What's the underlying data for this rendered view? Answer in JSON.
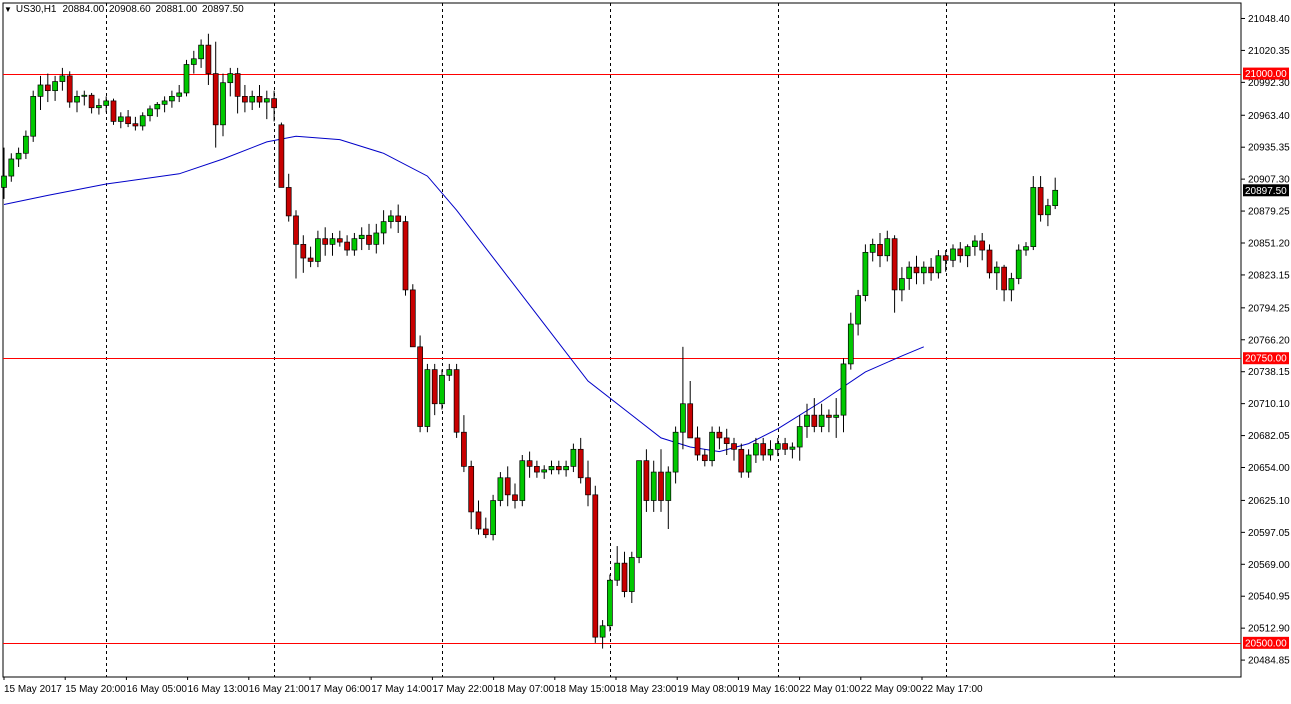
{
  "header": {
    "symbol_label": "US30,H1",
    "open": "20884.00",
    "high": "20908.60",
    "low": "20881.00",
    "close": "20897.50",
    "menu_icon": "triangle-down-icon"
  },
  "chart_data": {
    "type": "candlestick",
    "symbol": "US30",
    "timeframe": "H1",
    "ylim": [
      20470.0,
      21062.0
    ],
    "y_ticks": [
      "21048.40",
      "21020.35",
      "20992.30",
      "20963.40",
      "20935.35",
      "20907.30",
      "20879.25",
      "20851.20",
      "20823.15",
      "20794.25",
      "20766.20",
      "20738.15",
      "20710.10",
      "20682.05",
      "20654.00",
      "20625.10",
      "20597.05",
      "20569.00",
      "20540.95",
      "20512.90",
      "20484.85"
    ],
    "x_labels": [
      "15 May 2017",
      "15 May 20:00",
      "16 May 05:00",
      "16 May 13:00",
      "16 May 21:00",
      "17 May 06:00",
      "17 May 14:00",
      "17 May 22:00",
      "18 May 07:00",
      "18 May 15:00",
      "18 May 23:00",
      "19 May 08:00",
      "19 May 16:00",
      "22 May 01:00",
      "22 May 09:00",
      "22 May 17:00"
    ],
    "session_separator_indices": [
      14,
      37,
      60,
      83,
      106,
      129,
      152
    ],
    "horizontal_levels": [
      {
        "value": 21000.0,
        "label": "21000.00"
      },
      {
        "value": 20750.0,
        "label": "20750.00"
      },
      {
        "value": 20500.0,
        "label": "20500.00"
      }
    ],
    "current_price": {
      "value": 20897.5,
      "label": "20897.50"
    },
    "colors": {
      "bull": "#00c800",
      "bear": "#c80000",
      "ma": "#0000c8",
      "levels": "#ff0000",
      "grid": "#000000"
    },
    "candles": [
      [
        20900,
        20935,
        20890,
        20910
      ],
      [
        20910,
        20930,
        20905,
        20925
      ],
      [
        20925,
        20935,
        20918,
        20930
      ],
      [
        20930,
        20950,
        20925,
        20945
      ],
      [
        20945,
        20985,
        20940,
        20980
      ],
      [
        20980,
        20998,
        20968,
        20990
      ],
      [
        20990,
        21000,
        20975,
        20985
      ],
      [
        20985,
        20998,
        20976,
        20993
      ],
      [
        20993,
        21005,
        20985,
        20998
      ],
      [
        20998,
        21002,
        20970,
        20975
      ],
      [
        20975,
        20985,
        20966,
        20980
      ],
      [
        20980,
        20985,
        20972,
        20981
      ],
      [
        20981,
        20983,
        20965,
        20970
      ],
      [
        20970,
        20978,
        20964,
        20972
      ],
      [
        20972,
        20980,
        20966,
        20976
      ],
      [
        20976,
        20978,
        20955,
        20958
      ],
      [
        20958,
        20966,
        20952,
        20962
      ],
      [
        20962,
        20968,
        20953,
        20956
      ],
      [
        20956,
        20962,
        20950,
        20954
      ],
      [
        20954,
        20966,
        20950,
        20963
      ],
      [
        20963,
        20972,
        20958,
        20969
      ],
      [
        20969,
        20975,
        20962,
        20973
      ],
      [
        20973,
        20980,
        20966,
        20976
      ],
      [
        20976,
        20985,
        20970,
        20980
      ],
      [
        20980,
        20990,
        20975,
        20983
      ],
      [
        20983,
        21012,
        20980,
        21008
      ],
      [
        21008,
        21020,
        21000,
        21013
      ],
      [
        21013,
        21030,
        21005,
        21025
      ],
      [
        21025,
        21035,
        20990,
        21000
      ],
      [
        21000,
        21028,
        20935,
        20955
      ],
      [
        20955,
        21000,
        20945,
        20992
      ],
      [
        20992,
        21005,
        20980,
        21000
      ],
      [
        21000,
        21005,
        20965,
        20980
      ],
      [
        20980,
        20990,
        20966,
        20975
      ],
      [
        20975,
        20985,
        20968,
        20980
      ],
      [
        20980,
        20990,
        20970,
        20975
      ],
      [
        20975,
        20985,
        20960,
        20978
      ],
      [
        20978,
        20985,
        20958,
        20970
      ],
      [
        20955,
        20957,
        20900,
        20900
      ],
      [
        20900,
        20912,
        20870,
        20875
      ],
      [
        20875,
        20880,
        20820,
        20850
      ],
      [
        20850,
        20858,
        20825,
        20838
      ],
      [
        20838,
        20848,
        20830,
        20835
      ],
      [
        20835,
        20862,
        20830,
        20855
      ],
      [
        20855,
        20865,
        20840,
        20850
      ],
      [
        20850,
        20860,
        20840,
        20855
      ],
      [
        20855,
        20862,
        20848,
        20852
      ],
      [
        20852,
        20858,
        20840,
        20845
      ],
      [
        20845,
        20860,
        20840,
        20855
      ],
      [
        20855,
        20865,
        20845,
        20858
      ],
      [
        20858,
        20868,
        20845,
        20850
      ],
      [
        20850,
        20868,
        20842,
        20860
      ],
      [
        20860,
        20880,
        20850,
        20870
      ],
      [
        20870,
        20880,
        20864,
        20875
      ],
      [
        20875,
        20885,
        20860,
        20870
      ],
      [
        20870,
        20875,
        20805,
        20810
      ],
      [
        20810,
        20815,
        20760,
        20760
      ],
      [
        20760,
        20770,
        20685,
        20690
      ],
      [
        20690,
        20745,
        20685,
        20740
      ],
      [
        20740,
        20745,
        20700,
        20710
      ],
      [
        20710,
        20740,
        20705,
        20735
      ],
      [
        20735,
        20745,
        20730,
        20740
      ],
      [
        20740,
        20745,
        20680,
        20685
      ],
      [
        20685,
        20700,
        20650,
        20655
      ],
      [
        20655,
        20660,
        20600,
        20615
      ],
      [
        20615,
        20625,
        20595,
        20600
      ],
      [
        20600,
        20610,
        20592,
        20595
      ],
      [
        20595,
        20630,
        20590,
        20625
      ],
      [
        20625,
        20650,
        20620,
        20645
      ],
      [
        20645,
        20655,
        20620,
        20630
      ],
      [
        20630,
        20640,
        20618,
        20625
      ],
      [
        20625,
        20665,
        20620,
        20660
      ],
      [
        20660,
        20668,
        20645,
        20655
      ],
      [
        20655,
        20660,
        20645,
        20650
      ],
      [
        20650,
        20656,
        20644,
        20652
      ],
      [
        20652,
        20660,
        20648,
        20655
      ],
      [
        20655,
        20660,
        20648,
        20652
      ],
      [
        20652,
        20660,
        20646,
        20655
      ],
      [
        20655,
        20675,
        20650,
        20670
      ],
      [
        20670,
        20680,
        20640,
        20645
      ],
      [
        20645,
        20660,
        20620,
        20630
      ],
      [
        20630,
        20638,
        20500,
        20505
      ],
      [
        20505,
        20520,
        20495,
        20515
      ],
      [
        20515,
        20560,
        20510,
        20555
      ],
      [
        20555,
        20585,
        20550,
        20570
      ],
      [
        20570,
        20580,
        20540,
        20545
      ],
      [
        20545,
        20580,
        20535,
        20575
      ],
      [
        20575,
        20660,
        20570,
        20660
      ],
      [
        20660,
        20670,
        20615,
        20625
      ],
      [
        20625,
        20660,
        20615,
        20650
      ],
      [
        20650,
        20670,
        20615,
        20625
      ],
      [
        20625,
        20655,
        20600,
        20650
      ],
      [
        20650,
        20690,
        20640,
        20685
      ],
      [
        20685,
        20760,
        20670,
        20710
      ],
      [
        20710,
        20730,
        20680,
        20680
      ],
      [
        20680,
        20690,
        20660,
        20665
      ],
      [
        20665,
        20670,
        20655,
        20660
      ],
      [
        20660,
        20690,
        20655,
        20685
      ],
      [
        20685,
        20690,
        20670,
        20680
      ],
      [
        20680,
        20688,
        20665,
        20675
      ],
      [
        20675,
        20680,
        20660,
        20670
      ],
      [
        20670,
        20675,
        20645,
        20650
      ],
      [
        20650,
        20670,
        20645,
        20665
      ],
      [
        20665,
        20680,
        20658,
        20675
      ],
      [
        20675,
        20680,
        20660,
        20665
      ],
      [
        20665,
        20678,
        20660,
        20670
      ],
      [
        20670,
        20680,
        20664,
        20675
      ],
      [
        20675,
        20680,
        20665,
        20670
      ],
      [
        20670,
        20676,
        20662,
        20672
      ],
      [
        20672,
        20700,
        20660,
        20690
      ],
      [
        20690,
        20710,
        20680,
        20700
      ],
      [
        20700,
        20715,
        20685,
        20690
      ],
      [
        20690,
        20710,
        20685,
        20700
      ],
      [
        20700,
        20705,
        20685,
        20698
      ],
      [
        20698,
        20715,
        20680,
        20700
      ],
      [
        20700,
        20750,
        20685,
        20745
      ],
      [
        20745,
        20790,
        20740,
        20780
      ],
      [
        20780,
        20810,
        20770,
        20805
      ],
      [
        20805,
        20850,
        20800,
        20843
      ],
      [
        20843,
        20855,
        20835,
        20850
      ],
      [
        20850,
        20860,
        20830,
        20840
      ],
      [
        20840,
        20862,
        20835,
        20855
      ],
      [
        20855,
        20858,
        20790,
        20810
      ],
      [
        20810,
        20830,
        20800,
        20820
      ],
      [
        20820,
        20835,
        20810,
        20830
      ],
      [
        20830,
        20840,
        20815,
        20825
      ],
      [
        20825,
        20835,
        20815,
        20830
      ],
      [
        20830,
        20838,
        20818,
        20825
      ],
      [
        20825,
        20845,
        20820,
        20840
      ],
      [
        20840,
        20845,
        20826,
        20836
      ],
      [
        20836,
        20850,
        20830,
        20846
      ],
      [
        20846,
        20852,
        20834,
        20840
      ],
      [
        20840,
        20850,
        20830,
        20848
      ],
      [
        20848,
        20858,
        20840,
        20853
      ],
      [
        20853,
        20860,
        20836,
        20845
      ],
      [
        20845,
        20850,
        20820,
        20825
      ],
      [
        20825,
        20835,
        20810,
        20830
      ],
      [
        20830,
        20832,
        20800,
        20810
      ],
      [
        20810,
        20825,
        20800,
        20820
      ],
      [
        20820,
        20850,
        20815,
        20845
      ],
      [
        20845,
        20852,
        20840,
        20848
      ],
      [
        20848,
        20910,
        20845,
        20900
      ],
      [
        20900,
        20910,
        20870,
        20876
      ],
      [
        20876,
        20890,
        20866,
        20884
      ],
      [
        20884,
        20908.6,
        20881,
        20897.5
      ]
    ],
    "ma_points": [
      [
        0,
        20885
      ],
      [
        6,
        20893
      ],
      [
        14,
        20903
      ],
      [
        24,
        20912
      ],
      [
        30,
        20925
      ],
      [
        36,
        20940
      ],
      [
        40,
        20945
      ],
      [
        46,
        20942
      ],
      [
        52,
        20930
      ],
      [
        58,
        20910
      ],
      [
        62,
        20880
      ],
      [
        68,
        20830
      ],
      [
        74,
        20780
      ],
      [
        80,
        20730
      ],
      [
        86,
        20700
      ],
      [
        90,
        20680
      ],
      [
        94,
        20672
      ],
      [
        98,
        20668
      ],
      [
        102,
        20675
      ],
      [
        106,
        20688
      ],
      [
        112,
        20712
      ],
      [
        118,
        20738
      ],
      [
        123,
        20752
      ],
      [
        126,
        20760
      ]
    ]
  }
}
